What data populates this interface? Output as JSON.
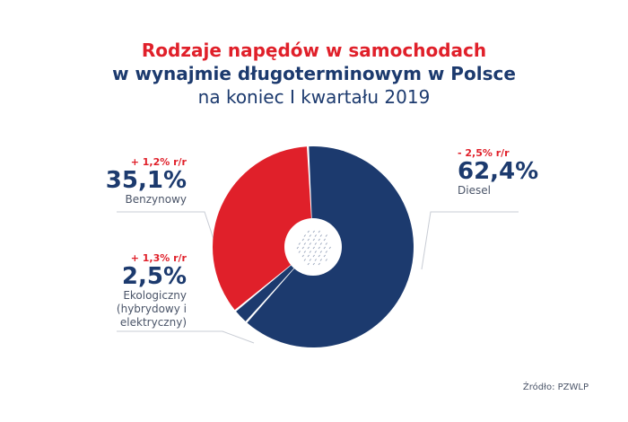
{
  "title": {
    "line1": "Rodzaje napędów w samochodach",
    "line2": "w wynajmie długoterminowym w Polsce",
    "line3": "na koniec I kwartału 2019"
  },
  "chart_data": {
    "type": "pie",
    "slices": [
      {
        "label": "Diesel",
        "value": 62.4,
        "value_text": "62,4%",
        "change": "- 2,5% r/r",
        "color": "#1c3a6e"
      },
      {
        "label": "Ekologiczny (hybrydowy i elektryczny)",
        "value": 2.5,
        "value_text": "2,5%",
        "change": "+ 1,3% r/r",
        "color": "#1c3a6e"
      },
      {
        "label": "Benzynowy",
        "value": 35.1,
        "value_text": "35,1%",
        "change": "+ 1,2% r/r",
        "color": "#e0202a"
      }
    ]
  },
  "labels": {
    "benzynowy": {
      "change": "+ 1,2% r/r",
      "value": "35,1%",
      "name": "Benzynowy"
    },
    "ekologiczny": {
      "change": "+ 1,3% r/r",
      "value": "2,5%",
      "name_line1": "Ekologiczny",
      "name_line2": "(hybrydowy i",
      "name_line3": "elektryczny)"
    },
    "diesel": {
      "change": "- 2,5% r/r",
      "value": "62,4%",
      "name": "Diesel"
    }
  },
  "source": "Źródło: PZWLP"
}
